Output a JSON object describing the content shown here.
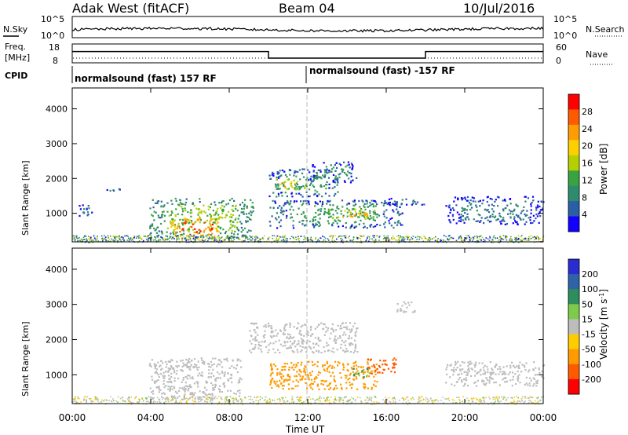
{
  "header": {
    "title": "Adak West (fitACF)",
    "beam": "Beam 04",
    "date": "10/Jul/2016"
  },
  "noise_panel": {
    "left_label": "N.Sky",
    "right_label": "N.Search",
    "left_ticks": [
      "10^5",
      "10^0"
    ],
    "right_ticks": [
      "10^5",
      "10^0"
    ]
  },
  "freq_panel": {
    "left_label_line1": "Freq.",
    "left_label_line2": "[MHz]",
    "right_label": "Nave",
    "left_ticks": [
      "18",
      "8"
    ],
    "right_ticks": [
      "60",
      "0"
    ]
  },
  "cpid_panel": {
    "label": "CPID",
    "segments": [
      "normalsound (fast) 157 RF",
      "normalsound (fast) -157 RF"
    ]
  },
  "power_colorbar": {
    "label": "Power [dB]",
    "ticks": [
      "28",
      "24",
      "20",
      "16",
      "12",
      "8",
      "4"
    ],
    "colors": [
      "#ff0000",
      "#ff5a00",
      "#ff9d00",
      "#fcd000",
      "#b5d000",
      "#3aa341",
      "#2f8b6e",
      "#2a5fa8",
      "#1100ff"
    ]
  },
  "velocity_colorbar": {
    "label": "Velocity [m s",
    "label_sup": "-1",
    "label_end": "]",
    "ticks": [
      "200",
      "100",
      "50",
      "15",
      "-15",
      "-50",
      "-100",
      "-200"
    ],
    "colors": [
      "#2a2bd0",
      "#2e63a8",
      "#2e8d5c",
      "#7ccb4a",
      "#bdbdbd",
      "#ffcc00",
      "#ff9a00",
      "#ff5a00",
      "#ff0000"
    ]
  },
  "chart_data": {
    "type": "heatmap",
    "title": "Adak West (fitACF)",
    "xlabel": "Time UT",
    "ylabel": "Slant Range [km]",
    "x_ticks": [
      "00:00",
      "04:00",
      "08:00",
      "12:00",
      "16:00",
      "20:00",
      "00:00"
    ],
    "y_ticks": [
      "1000",
      "2000",
      "3000",
      "4000"
    ],
    "xlim_hours": [
      0,
      24
    ],
    "ylim_km": [
      180,
      4600
    ],
    "freq_mhz": {
      "segments": [
        {
          "start": "00:00",
          "end": "10:00",
          "value": 14
        },
        {
          "start": "10:00",
          "end": "18:00",
          "value": 10.5
        },
        {
          "start": "18:00",
          "end": "24:00",
          "value": 14
        }
      ]
    },
    "power_blobs": [
      {
        "t0": 3.9,
        "t1": 9.2,
        "r0": 300,
        "r1": 1450,
        "dB": 14
      },
      {
        "t0": 5.0,
        "t1": 7.5,
        "r0": 350,
        "r1": 900,
        "dB": 28
      },
      {
        "t0": 10.0,
        "t1": 13.5,
        "r0": 1500,
        "r1": 2300,
        "dB": 10
      },
      {
        "t0": 10.3,
        "t1": 12.0,
        "r0": 1700,
        "r1": 2000,
        "dB": 20
      },
      {
        "t0": 12.0,
        "t1": 14.5,
        "r0": 1900,
        "r1": 2500,
        "dB": 8
      },
      {
        "t0": 10.0,
        "t1": 16.8,
        "r0": 600,
        "r1": 1400,
        "dB": 10
      },
      {
        "t0": 13.0,
        "t1": 15.5,
        "r0": 850,
        "r1": 1150,
        "dB": 20
      },
      {
        "t0": 19.0,
        "t1": 24.0,
        "r0": 700,
        "r1": 1500,
        "dB": 6
      },
      {
        "t0": 0.3,
        "t1": 1.0,
        "r0": 900,
        "r1": 1300,
        "dB": 5
      },
      {
        "t0": 1.5,
        "t1": 2.6,
        "r0": 1650,
        "r1": 1750,
        "dB": 5
      },
      {
        "t0": 16.0,
        "t1": 18.0,
        "r0": 1250,
        "r1": 1450,
        "dB": 6
      }
    ],
    "velocity_blobs": [
      {
        "t0": 3.9,
        "t1": 8.6,
        "r0": 300,
        "r1": 1500,
        "v": 0
      },
      {
        "t0": 9.0,
        "t1": 14.5,
        "r0": 1650,
        "r1": 2500,
        "v": 0
      },
      {
        "t0": 10.0,
        "t1": 15.5,
        "r0": 600,
        "r1": 1400,
        "v": -50
      },
      {
        "t0": 15.0,
        "t1": 16.5,
        "r0": 1050,
        "r1": 1500,
        "v": -100
      },
      {
        "t0": 14.3,
        "t1": 15.2,
        "r0": 950,
        "r1": 1200,
        "v": 30
      },
      {
        "t0": 19.0,
        "t1": 24.0,
        "r0": 700,
        "r1": 1400,
        "v": 0
      },
      {
        "t0": 16.5,
        "t1": 17.5,
        "r0": 2800,
        "r1": 3100,
        "v": 0
      }
    ]
  }
}
